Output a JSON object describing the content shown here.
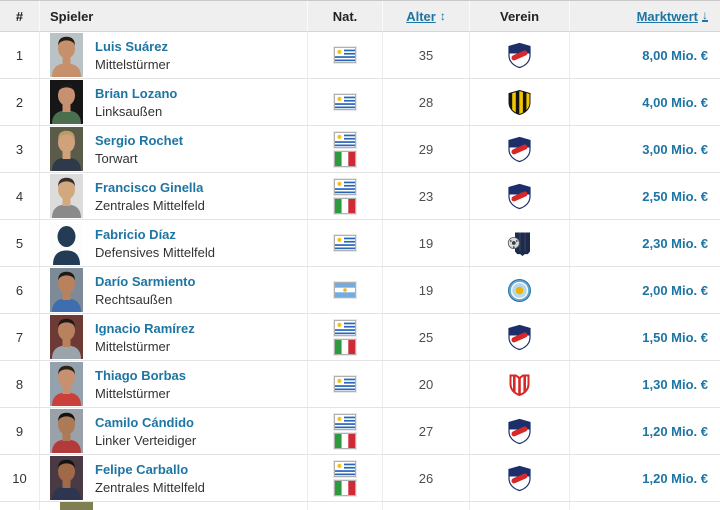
{
  "colors": {
    "link_blue": "#1d75a3",
    "header_bg": "#efefef"
  },
  "table": {
    "columns": {
      "rank": "#",
      "player": "Spieler",
      "nationality": "Nat.",
      "age": "Alter",
      "club": "Verein",
      "market_value": "Marktwert"
    },
    "sort_icons": {
      "age": "↕",
      "market_value": "↓"
    },
    "rows": [
      {
        "rank": "1",
        "name": "Luis Suárez",
        "position": "Mittelstürmer",
        "flags": [
          "uruguay"
        ],
        "age": "35",
        "club_badge": "nacional-montevideo",
        "market_value": "8,00 Mio. €",
        "photo": {
          "bg": "#b9c3c5",
          "skin": "#c5906b",
          "shirt": "#c5906b",
          "hair": "#241c15"
        }
      },
      {
        "rank": "2",
        "name": "Brian Lozano",
        "position": "Linksaußen",
        "flags": [
          "uruguay"
        ],
        "age": "28",
        "club_badge": "penarol-montevideo",
        "market_value": "4,00 Mio. €",
        "photo": {
          "bg": "#161616",
          "skin": "#c79071",
          "shirt": "#4a6e4e",
          "hair": "#1c1a17"
        }
      },
      {
        "rank": "3",
        "name": "Sergio Rochet",
        "position": "Torwart",
        "flags": [
          "uruguay",
          "italy"
        ],
        "age": "29",
        "club_badge": "nacional-montevideo",
        "market_value": "3,00 Mio. €",
        "photo": {
          "bg": "#5b5b4a",
          "skin": "#cfa27b",
          "shirt": "#2e3a4a",
          "hair": "#b99b66"
        }
      },
      {
        "rank": "4",
        "name": "Francisco Ginella",
        "position": "Zentrales Mittelfeld",
        "flags": [
          "uruguay",
          "italy"
        ],
        "age": "23",
        "club_badge": "nacional-montevideo",
        "market_value": "2,50 Mio. €",
        "photo": {
          "bg": "#dcdcdc",
          "skin": "#d4a87f",
          "shirt": "#8a8a8a",
          "hair": "#3a2f28"
        }
      },
      {
        "rank": "5",
        "name": "Fabricio Díaz",
        "position": "Defensives Mittelfeld",
        "flags": [
          "uruguay"
        ],
        "age": "19",
        "club_badge": "liverpool-montevideo",
        "market_value": "2,30 Mio. €",
        "photo": {
          "silhouette": true,
          "fg": "#233b55"
        }
      },
      {
        "rank": "6",
        "name": "Darío Sarmiento",
        "position": "Rechtsaußen",
        "flags": [
          "argentina"
        ],
        "age": "19",
        "club_badge": "montevideo-city-torque",
        "market_value": "2,00 Mio. €",
        "photo": {
          "bg": "#7d8b99",
          "skin": "#b9825f",
          "shirt": "#3e6db0",
          "hair": "#1e1a16"
        }
      },
      {
        "rank": "7",
        "name": "Ignacio Ramírez",
        "position": "Mittelstürmer",
        "flags": [
          "uruguay",
          "italy"
        ],
        "age": "25",
        "club_badge": "nacional-montevideo",
        "market_value": "1,50 Mio. €",
        "photo": {
          "bg": "#6e3a36",
          "skin": "#b9825f",
          "shirt": "#9aa4ad",
          "hair": "#1e1a16"
        }
      },
      {
        "rank": "8",
        "name": "Thiago Borbas",
        "position": "Mittelstürmer",
        "flags": [
          "uruguay"
        ],
        "age": "20",
        "club_badge": "river-plate-montevideo",
        "market_value": "1,30 Mio. €",
        "photo": {
          "bg": "#93a2ad",
          "skin": "#c79071",
          "shirt": "#c9403c",
          "hair": "#2a2119"
        }
      },
      {
        "rank": "9",
        "name": "Camilo Cándido",
        "position": "Linker Verteidiger",
        "flags": [
          "uruguay",
          "italy"
        ],
        "age": "27",
        "club_badge": "nacional-montevideo",
        "market_value": "1,20 Mio. €",
        "photo": {
          "bg": "#9aa1a8",
          "skin": "#ad7a58",
          "shirt": "#b33a3a",
          "hair": "#151210"
        }
      },
      {
        "rank": "10",
        "name": "Felipe Carballo",
        "position": "Zentrales Mittelfeld",
        "flags": [
          "uruguay",
          "italy"
        ],
        "age": "26",
        "club_badge": "nacional-montevideo",
        "market_value": "1,20 Mio. €",
        "photo": {
          "bg": "#4a3a44",
          "skin": "#a06a48",
          "shirt": "#2e3550",
          "hair": "#151210"
        }
      }
    ]
  }
}
